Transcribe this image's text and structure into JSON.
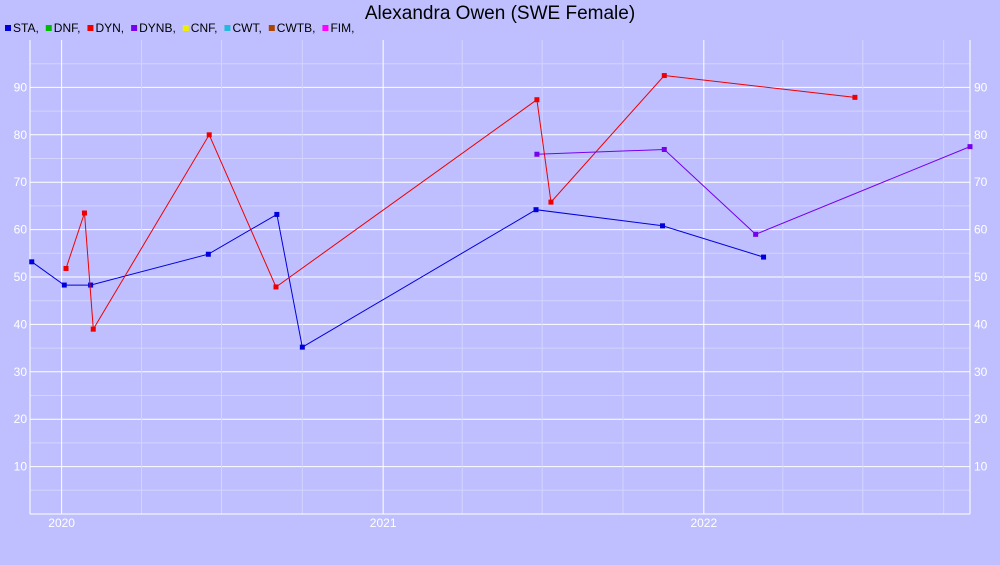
{
  "chart_data": {
    "type": "line",
    "title": "Alexandra Owen (SWE Female)",
    "xlabel": "",
    "ylabel": "",
    "xlim": [
      "2019-11-26",
      "2022-10-31"
    ],
    "ylim": [
      0,
      100
    ],
    "yticks": [
      10,
      20,
      30,
      40,
      50,
      60,
      70,
      80,
      90
    ],
    "xticks": [
      "2020-01-01",
      "2021-01-01",
      "2022-01-01"
    ],
    "xtick_labels": [
      "2020",
      "2021",
      "2022"
    ],
    "grid": true,
    "legend_position": "top-left",
    "legend": [
      {
        "label": "STA,",
        "color": "#0000dd"
      },
      {
        "label": "DNF,",
        "color": "#00bb00"
      },
      {
        "label": "DYN,",
        "color": "#ee0000"
      },
      {
        "label": "DYNB,",
        "color": "#7700ee"
      },
      {
        "label": "CNF,",
        "color": "#eeee00"
      },
      {
        "label": "CWT,",
        "color": "#22bbdd"
      },
      {
        "label": "CWTB,",
        "color": "#aa4400"
      },
      {
        "label": "FIM,",
        "color": "#ff00ff"
      }
    ],
    "series": [
      {
        "key": "STA",
        "color": "#0000dd",
        "points": [
          {
            "x": "2019-11-28",
            "y": 53.2
          },
          {
            "x": "2020-01-04",
            "y": 48.3
          },
          {
            "x": "2020-02-03",
            "y": 48.3
          },
          {
            "x": "2020-06-16",
            "y": 54.8
          },
          {
            "x": "2020-09-02",
            "y": 63.2
          },
          {
            "x": "2020-10-01",
            "y": 35.2
          },
          {
            "x": "2021-06-24",
            "y": 64.2
          },
          {
            "x": "2021-11-15",
            "y": 60.8
          },
          {
            "x": "2022-03-10",
            "y": 54.2
          }
        ]
      },
      {
        "key": "DYN",
        "color": "#ee0000",
        "points": [
          {
            "x": "2020-01-06",
            "y": 51.8
          },
          {
            "x": "2020-01-27",
            "y": 63.5
          },
          {
            "x": "2020-02-06",
            "y": 39.0
          },
          {
            "x": "2020-06-17",
            "y": 80.0
          },
          {
            "x": "2020-09-01",
            "y": 47.9
          },
          {
            "x": "2021-06-25",
            "y": 87.4
          },
          {
            "x": "2021-07-11",
            "y": 65.8
          },
          {
            "x": "2021-11-17",
            "y": 92.5
          },
          {
            "x": "2022-06-22",
            "y": 87.9
          }
        ]
      },
      {
        "key": "DYNB",
        "color": "#7700ee",
        "points": [
          {
            "x": "2021-06-25",
            "y": 75.9
          },
          {
            "x": "2021-11-17",
            "y": 76.9
          },
          {
            "x": "2022-03-01",
            "y": 59.0
          },
          {
            "x": "2022-10-31",
            "y": 77.5
          }
        ]
      }
    ]
  }
}
